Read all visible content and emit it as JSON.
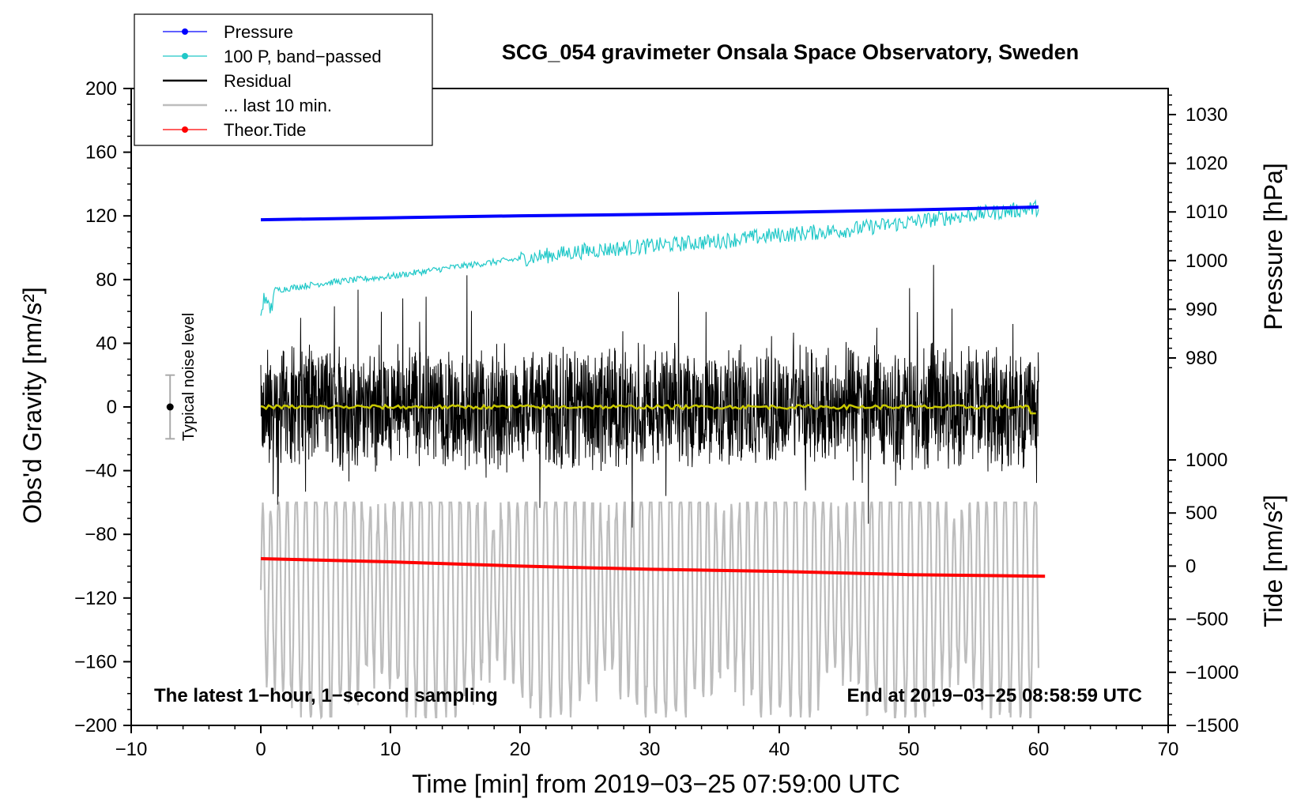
{
  "chart_data": {
    "type": "line",
    "title": "SCG_054 gravimeter Onsala Space Observatory, Sweden",
    "xlabel": "Time [min] from 2019−03−25 07:59:00 UTC",
    "ylabel_left": "Obs'd Gravity [nm/s²]",
    "ylabel_right_top": "Pressure [hPa]",
    "ylabel_right_bottom": "Tide [nm/s²]",
    "xlim": [
      -10,
      70
    ],
    "ylim_left": [
      -200,
      200
    ],
    "pressure_lim": [
      970,
      1035
    ],
    "tide_lim": [
      -1500,
      1000
    ],
    "x_ticks": [
      "−10",
      "0",
      "10",
      "20",
      "30",
      "40",
      "50",
      "60",
      "70"
    ],
    "x_tick_values": [
      -10,
      0,
      10,
      20,
      30,
      40,
      50,
      60,
      70
    ],
    "y_left_ticks": [
      "200",
      "160",
      "120",
      "80",
      "40",
      "0",
      "−40",
      "−80",
      "−120",
      "−160",
      "−200"
    ],
    "y_left_tick_values": [
      200,
      160,
      120,
      80,
      40,
      0,
      -40,
      -80,
      -120,
      -160,
      -200
    ],
    "pressure_ticks": [
      "1030",
      "1020",
      "1010",
      "1000",
      "990",
      "980"
    ],
    "pressure_tick_values": [
      1030,
      1020,
      1010,
      1000,
      990,
      980
    ],
    "tide_ticks": [
      "1000",
      "500",
      "0",
      "−500",
      "−1000",
      "−1500"
    ],
    "tide_tick_values": [
      1000,
      500,
      0,
      -500,
      -1000,
      -1500
    ],
    "legend": [
      {
        "label": "Pressure",
        "color": "#0000ff",
        "marker": true
      },
      {
        "label": "100 P, band−passed",
        "color": "#20c8c8",
        "marker": true
      },
      {
        "label": "Residual",
        "color": "#000000",
        "marker": false
      },
      {
        "label": "... last 10 min.",
        "color": "#bdbdbd",
        "marker": false
      },
      {
        "label": "Theor.Tide",
        "color": "#ff0000",
        "marker": true
      }
    ],
    "series": [
      {
        "name": "Pressure",
        "axis": "pressure",
        "color": "#0000ff",
        "x": [
          0,
          10,
          20,
          30,
          40,
          50,
          60
        ],
        "values": [
          1008.4,
          1008.8,
          1009.2,
          1009.5,
          1009.9,
          1010.4,
          1011.0
        ]
      },
      {
        "name": "100 P, band−passed",
        "axis": "left",
        "color": "#20c8c8",
        "x": [
          0,
          5,
          10,
          15,
          20,
          25,
          30,
          35,
          40,
          45,
          50,
          55,
          60
        ],
        "values": [
          72,
          78,
          82,
          88,
          93,
          98,
          101,
          104,
          108,
          111,
          116,
          121,
          125
        ]
      },
      {
        "name": "Residual",
        "axis": "left",
        "color": "#000000",
        "x": [
          0,
          60
        ],
        "values": [
          0,
          0
        ],
        "amplitude_range": [
          -85,
          90
        ]
      },
      {
        "name": "... last 10 min.",
        "axis": "left",
        "color": "#bdbdbd",
        "x": [
          0,
          60
        ],
        "values": [
          -115,
          -115
        ],
        "amplitude_range": [
          -195,
          -60
        ]
      },
      {
        "name": "Yellow smoothed residual",
        "axis": "left",
        "color": "#c8c800",
        "x": [
          0,
          60
        ],
        "values": [
          0,
          0
        ]
      },
      {
        "name": "Theor.Tide",
        "axis": "tide",
        "color": "#ff0000",
        "x": [
          0,
          10,
          20,
          30,
          40,
          50,
          60.5
        ],
        "values": [
          70,
          40,
          0,
          -30,
          -50,
          -80,
          -95
        ]
      }
    ],
    "noise_bar": {
      "label": "Typical noise level",
      "x": -7,
      "center": 0,
      "half_range": 20
    },
    "note_left": "The latest 1−hour, 1−second sampling",
    "note_right": "End at 2019−03−25 08:58:59 UTC"
  }
}
